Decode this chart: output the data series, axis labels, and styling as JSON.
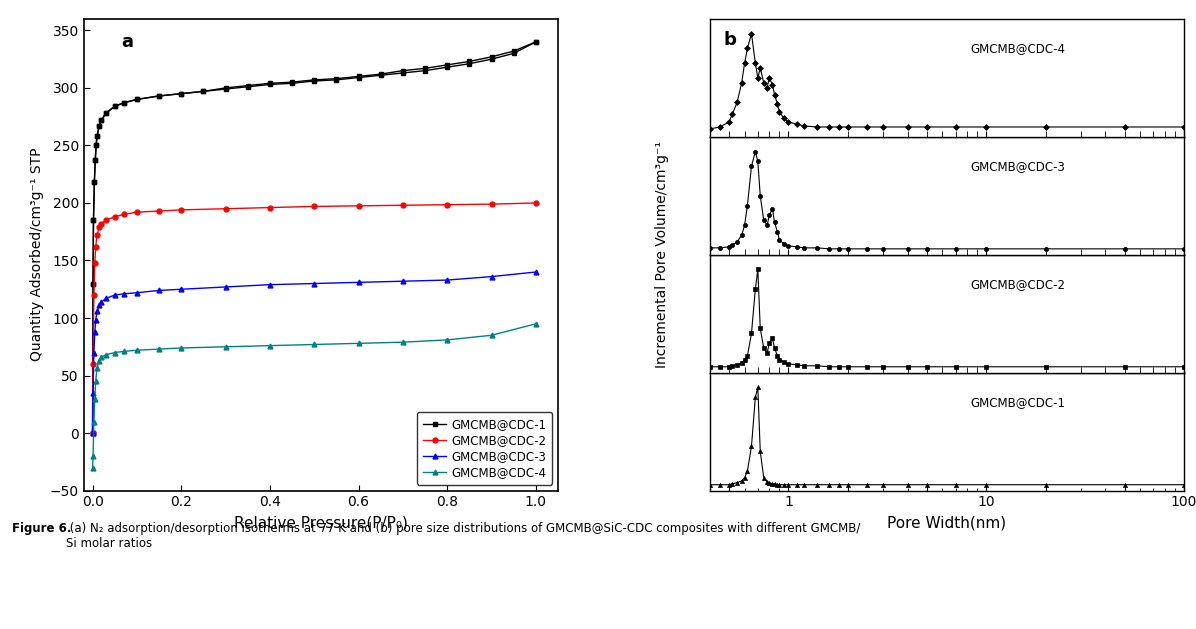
{
  "panel_a_label": "a",
  "panel_b_label": "b",
  "ylabel_a": "Quantity Adsorbed/cm³g⁻¹ STP",
  "xlabel_a": "Relative Pressure(P/P₀)",
  "ylabel_b": "Incremental Pore Volume/cm³g⁻¹",
  "xlabel_b": "Pore Width(nm)",
  "ylim_a": [
    -50,
    360
  ],
  "yticks_a": [
    -50,
    0,
    50,
    100,
    150,
    200,
    250,
    300,
    350
  ],
  "xlim_a": [
    -0.02,
    1.05
  ],
  "xticks_a": [
    0.0,
    0.2,
    0.4,
    0.6,
    0.8,
    1.0
  ],
  "legend_labels": [
    "GMCMB@CDC-1",
    "GMCMB@CDC-2",
    "GMCMB@CDC-3",
    "GMCMB@CDC-4"
  ],
  "colors": [
    "black",
    "red",
    "blue",
    "teal"
  ],
  "caption_bold": "Figure 6.",
  "caption_normal": " (a) N₂ adsorption/desorption isotherms at 77 K and (b) pore size distributions of GMCMB@SiC-CDC composites with different GMCMB/\nSi molar ratios",
  "background": "white",
  "p_cdc1": [
    0.0,
    0.001,
    0.002,
    0.004,
    0.006,
    0.008,
    0.01,
    0.015,
    0.02,
    0.03,
    0.05,
    0.07,
    0.1,
    0.15,
    0.2,
    0.25,
    0.3,
    0.35,
    0.4,
    0.45,
    0.5,
    0.55,
    0.6,
    0.65,
    0.7,
    0.75,
    0.8,
    0.85,
    0.9,
    0.95,
    1.0
  ],
  "q_cdc1": [
    0,
    130,
    185,
    218,
    237,
    250,
    258,
    267,
    272,
    278,
    284,
    287,
    290,
    293,
    295,
    297,
    299,
    301,
    303,
    304,
    306,
    307,
    309,
    311,
    313,
    315,
    318,
    321,
    325,
    330,
    340
  ],
  "q_cdc1_des": [
    0,
    130,
    185,
    218,
    237,
    250,
    258,
    267,
    272,
    278,
    284,
    287,
    290,
    293,
    295,
    297,
    300,
    302,
    304,
    305,
    307,
    308,
    310,
    312,
    315,
    317,
    320,
    323,
    327,
    332,
    340
  ],
  "p_cdc2": [
    0.0,
    0.001,
    0.003,
    0.005,
    0.007,
    0.01,
    0.015,
    0.02,
    0.03,
    0.05,
    0.07,
    0.1,
    0.15,
    0.2,
    0.3,
    0.4,
    0.5,
    0.6,
    0.7,
    0.8,
    0.9,
    1.0
  ],
  "q_cdc2": [
    0,
    60,
    120,
    148,
    162,
    172,
    179,
    182,
    185,
    188,
    190,
    192,
    193,
    194,
    195,
    196,
    197,
    197.5,
    198,
    198.5,
    199,
    200
  ],
  "p_cdc3": [
    0.0,
    0.001,
    0.003,
    0.005,
    0.007,
    0.01,
    0.015,
    0.02,
    0.03,
    0.05,
    0.07,
    0.1,
    0.15,
    0.2,
    0.3,
    0.4,
    0.5,
    0.6,
    0.7,
    0.8,
    0.9,
    1.0
  ],
  "q_cdc3": [
    0,
    35,
    70,
    88,
    98,
    106,
    111,
    114,
    117,
    120,
    121,
    122,
    124,
    125,
    127,
    129,
    130,
    131,
    132,
    133,
    136,
    140
  ],
  "p_cdc4": [
    0.0,
    0.001,
    0.003,
    0.005,
    0.007,
    0.01,
    0.015,
    0.02,
    0.03,
    0.05,
    0.07,
    0.1,
    0.15,
    0.2,
    0.3,
    0.4,
    0.5,
    0.6,
    0.7,
    0.8,
    0.9,
    1.0
  ],
  "q_cdc4": [
    -30,
    -20,
    10,
    30,
    45,
    57,
    63,
    66,
    68,
    70,
    71,
    72,
    73,
    74,
    75,
    76,
    77,
    78,
    79,
    81,
    85,
    95
  ],
  "x_pore": [
    0.4,
    0.45,
    0.5,
    0.52,
    0.55,
    0.58,
    0.6,
    0.62,
    0.65,
    0.68,
    0.7,
    0.72,
    0.75,
    0.78,
    0.8,
    0.83,
    0.85,
    0.88,
    0.9,
    0.95,
    1.0,
    1.1,
    1.2,
    1.4,
    1.6,
    1.8,
    2.0,
    2.5,
    3.0,
    4.0,
    5.0,
    7.0,
    10.0,
    20.0,
    50.0,
    100.0
  ],
  "y_psd1": [
    0.01,
    0.01,
    0.01,
    0.02,
    0.03,
    0.05,
    0.08,
    0.15,
    0.4,
    0.9,
    1.0,
    0.35,
    0.08,
    0.04,
    0.03,
    0.02,
    0.02,
    0.01,
    0.01,
    0.01,
    0.01,
    0.01,
    0.01,
    0.01,
    0.01,
    0.01,
    0.01,
    0.01,
    0.01,
    0.01,
    0.01,
    0.01,
    0.01,
    0.01,
    0.01,
    0.01
  ],
  "y_psd2": [
    0.01,
    0.01,
    0.01,
    0.02,
    0.03,
    0.05,
    0.08,
    0.12,
    0.35,
    0.8,
    1.0,
    0.4,
    0.2,
    0.15,
    0.25,
    0.3,
    0.2,
    0.12,
    0.08,
    0.06,
    0.04,
    0.03,
    0.02,
    0.02,
    0.01,
    0.01,
    0.01,
    0.01,
    0.01,
    0.01,
    0.01,
    0.01,
    0.01,
    0.01,
    0.01,
    0.01
  ],
  "y_psd3": [
    0.02,
    0.02,
    0.03,
    0.05,
    0.08,
    0.15,
    0.25,
    0.45,
    0.85,
    1.0,
    0.9,
    0.55,
    0.3,
    0.25,
    0.35,
    0.42,
    0.28,
    0.18,
    0.1,
    0.06,
    0.04,
    0.03,
    0.02,
    0.02,
    0.01,
    0.01,
    0.01,
    0.01,
    0.01,
    0.01,
    0.01,
    0.01,
    0.01,
    0.01,
    0.01,
    0.01
  ],
  "y_psd4": [
    0.03,
    0.05,
    0.1,
    0.18,
    0.3,
    0.5,
    0.7,
    0.85,
    1.0,
    0.7,
    0.55,
    0.65,
    0.5,
    0.45,
    0.55,
    0.48,
    0.38,
    0.28,
    0.2,
    0.14,
    0.1,
    0.08,
    0.06,
    0.05,
    0.05,
    0.05,
    0.05,
    0.05,
    0.05,
    0.05,
    0.05,
    0.05,
    0.05,
    0.05,
    0.05,
    0.05
  ],
  "markers_b": [
    "^",
    "s",
    "o",
    "D"
  ],
  "panel_b_labels": [
    "GMCMB@CDC-1",
    "GMCMB@CDC-2",
    "GMCMB@CDC-3",
    "GMCMB@CDC-4"
  ]
}
